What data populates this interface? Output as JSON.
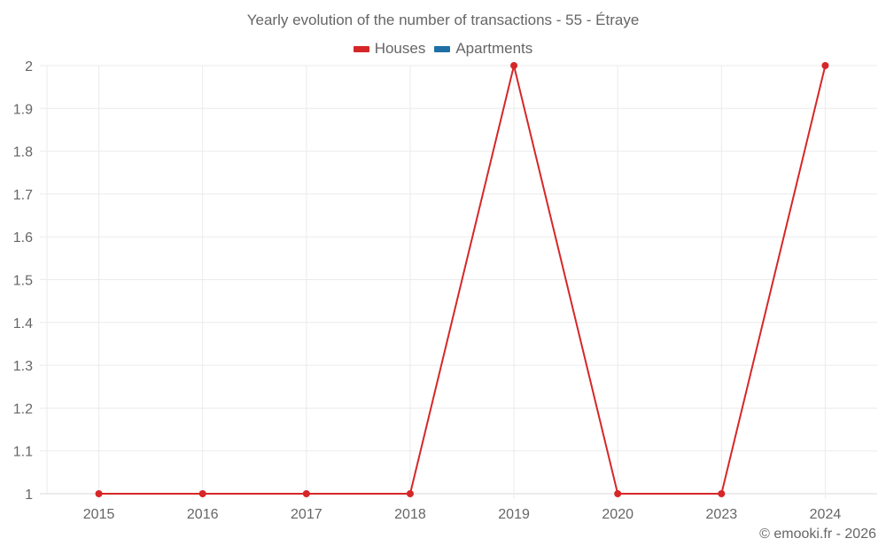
{
  "chart": {
    "title": "Yearly evolution of the number of transactions - 55 - Étraye",
    "legend": [
      {
        "label": "Houses",
        "color": "#d62728"
      },
      {
        "label": "Apartments",
        "color": "#1f6fa5"
      }
    ],
    "footer": "© emooki.fr - 2026"
  },
  "chart_data": {
    "type": "line",
    "title": "Yearly evolution of the number of transactions - 55 - Étraye",
    "xlabel": "",
    "ylabel": "",
    "categories": [
      "2015",
      "2016",
      "2017",
      "2018",
      "2019",
      "2020",
      "2023",
      "2024"
    ],
    "series": [
      {
        "name": "Houses",
        "color": "#d62728",
        "values": [
          1,
          1,
          1,
          1,
          2,
          1,
          1,
          2
        ]
      },
      {
        "name": "Apartments",
        "color": "#1f6fa5",
        "values": []
      }
    ],
    "ylim": [
      1,
      2
    ],
    "yticks": [
      "1",
      "1.1",
      "1.2",
      "1.3",
      "1.4",
      "1.5",
      "1.6",
      "1.7",
      "1.8",
      "1.9",
      "2"
    ],
    "grid": true,
    "legend_position": "top"
  }
}
